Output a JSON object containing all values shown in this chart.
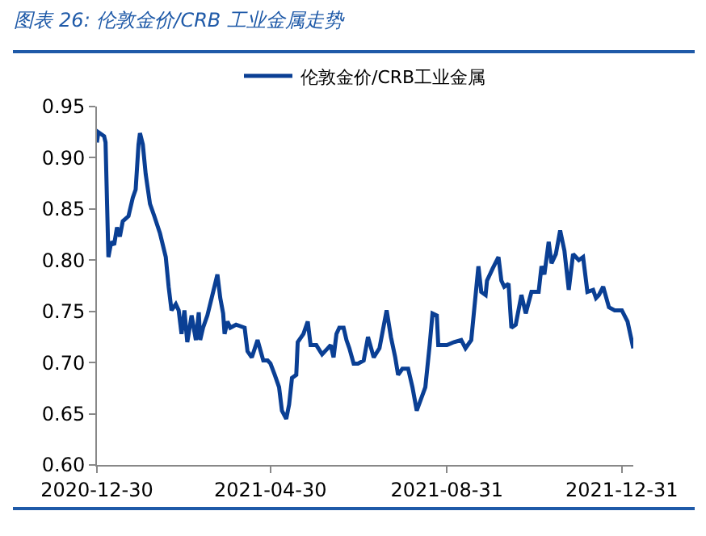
{
  "chart_data": {
    "type": "line",
    "title": "图表 26: 伦敦金价/CRB 工业金属走势",
    "x": [
      "2020-12-30",
      "2020-12-31",
      "2021-01-04",
      "2021-01-05",
      "2021-01-07",
      "2021-01-09",
      "2021-01-11",
      "2021-01-13",
      "2021-01-15",
      "2021-01-17",
      "2021-01-21",
      "2021-01-24",
      "2021-01-26",
      "2021-01-28",
      "2021-01-29",
      "2021-01-31",
      "2021-02-02",
      "2021-02-05",
      "2021-02-08",
      "2021-02-12",
      "2021-02-16",
      "2021-02-18",
      "2021-02-20",
      "2021-02-23",
      "2021-02-25",
      "2021-02-27",
      "2021-03-01",
      "2021-03-03",
      "2021-03-06",
      "2021-03-09",
      "2021-03-11",
      "2021-03-12",
      "2021-03-14",
      "2021-03-17",
      "2021-03-20",
      "2021-03-24",
      "2021-03-26",
      "2021-03-28",
      "2021-03-29",
      "2021-03-31",
      "2021-04-02",
      "2021-04-06",
      "2021-04-12",
      "2021-04-14",
      "2021-04-17",
      "2021-04-21",
      "2021-04-25",
      "2021-04-28",
      "2021-04-30",
      "2021-05-03",
      "2021-05-06",
      "2021-05-08",
      "2021-05-11",
      "2021-05-13",
      "2021-05-15",
      "2021-05-18",
      "2021-05-19",
      "2021-05-23",
      "2021-05-26",
      "2021-05-28",
      "2021-06-01",
      "2021-06-05",
      "2021-06-09",
      "2021-06-11",
      "2021-06-13",
      "2021-06-15",
      "2021-06-17",
      "2021-06-20",
      "2021-06-22",
      "2021-06-24",
      "2021-06-27",
      "2021-06-30",
      "2021-07-04",
      "2021-07-07",
      "2021-07-11",
      "2021-07-15",
      "2021-07-20",
      "2021-07-23",
      "2021-07-26",
      "2021-07-28",
      "2021-07-31",
      "2021-08-04",
      "2021-08-07",
      "2021-08-10",
      "2021-08-16",
      "2021-08-19",
      "2021-08-21",
      "2021-08-24",
      "2021-08-25",
      "2021-08-31",
      "2021-09-05",
      "2021-09-10",
      "2021-09-13",
      "2021-09-17",
      "2021-09-19",
      "2021-09-22",
      "2021-09-24",
      "2021-09-27",
      "2021-09-28",
      "2021-10-02",
      "2021-10-06",
      "2021-10-08",
      "2021-10-10",
      "2021-10-13",
      "2021-10-15",
      "2021-10-18",
      "2021-10-22",
      "2021-10-25",
      "2021-10-29",
      "2021-11-03",
      "2021-11-05",
      "2021-11-07",
      "2021-11-10",
      "2021-11-12",
      "2021-11-15",
      "2021-11-18",
      "2021-11-21",
      "2021-11-24",
      "2021-11-27",
      "2021-12-01",
      "2021-12-04",
      "2021-12-07",
      "2021-12-11",
      "2021-12-13",
      "2021-12-15",
      "2021-12-18",
      "2021-12-22",
      "2021-12-26",
      "2021-12-31",
      "2022-01-04",
      "2022-01-08"
    ],
    "series": [
      {
        "name": "伦敦金价/CRB工业金属",
        "color": "#0a3f94",
        "values": [
          0.915,
          0.925,
          0.921,
          0.915,
          0.803,
          0.818,
          0.815,
          0.832,
          0.823,
          0.838,
          0.843,
          0.861,
          0.869,
          0.913,
          0.924,
          0.913,
          0.884,
          0.855,
          0.843,
          0.826,
          0.803,
          0.774,
          0.751,
          0.757,
          0.751,
          0.728,
          0.751,
          0.72,
          0.746,
          0.722,
          0.749,
          0.722,
          0.734,
          0.746,
          0.763,
          0.786,
          0.763,
          0.748,
          0.728,
          0.74,
          0.734,
          0.737,
          0.734,
          0.711,
          0.705,
          0.722,
          0.702,
          0.702,
          0.699,
          0.688,
          0.676,
          0.653,
          0.645,
          0.659,
          0.685,
          0.688,
          0.72,
          0.728,
          0.74,
          0.717,
          0.717,
          0.708,
          0.714,
          0.717,
          0.705,
          0.728,
          0.734,
          0.734,
          0.722,
          0.714,
          0.699,
          0.699,
          0.702,
          0.725,
          0.705,
          0.714,
          0.751,
          0.725,
          0.705,
          0.688,
          0.694,
          0.694,
          0.676,
          0.653,
          0.676,
          0.717,
          0.748,
          0.746,
          0.717,
          0.717,
          0.72,
          0.722,
          0.714,
          0.722,
          0.751,
          0.794,
          0.769,
          0.766,
          0.78,
          0.792,
          0.803,
          0.78,
          0.774,
          0.777,
          0.734,
          0.737,
          0.766,
          0.748,
          0.769,
          0.769,
          0.794,
          0.786,
          0.818,
          0.797,
          0.806,
          0.829,
          0.809,
          0.771,
          0.806,
          0.8,
          0.803,
          0.769,
          0.771,
          0.763,
          0.766,
          0.774,
          0.754,
          0.751,
          0.751,
          0.74,
          0.714
        ]
      }
    ],
    "xlim": [
      "2020-12-30",
      "2022-01-08"
    ],
    "xticks": [
      {
        "value": "2020-12-30",
        "label": "2020-12-30"
      },
      {
        "value": "2021-04-30",
        "label": "2021-04-30"
      },
      {
        "value": "2021-08-31",
        "label": "2021-08-31"
      },
      {
        "value": "2021-12-31",
        "label": "2021-12-31"
      }
    ],
    "ylim": [
      0.6,
      0.95
    ],
    "yticks": [
      {
        "value": 0.6,
        "label": "0.60"
      },
      {
        "value": 0.65,
        "label": "0.65"
      },
      {
        "value": 0.7,
        "label": "0.70"
      },
      {
        "value": 0.75,
        "label": "0.75"
      },
      {
        "value": 0.8,
        "label": "0.80"
      },
      {
        "value": 0.85,
        "label": "0.85"
      },
      {
        "value": 0.9,
        "label": "0.90"
      },
      {
        "value": 0.95,
        "label": "0.95"
      }
    ],
    "grid": false,
    "legend": "top",
    "marker": "none",
    "line_style": "solid"
  }
}
